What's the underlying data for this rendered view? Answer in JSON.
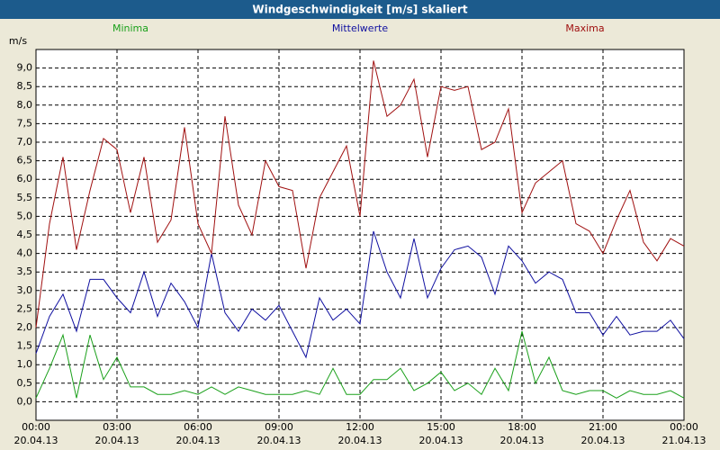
{
  "chart_data": {
    "type": "line",
    "title": "Windgeschwindigkeit [m/s] skaliert",
    "ylabel": "m/s",
    "x": [
      0,
      0.5,
      1,
      1.5,
      2,
      2.5,
      3,
      3.5,
      4,
      4.5,
      5,
      5.5,
      6,
      6.5,
      7,
      7.5,
      8,
      8.5,
      9,
      9.5,
      10,
      10.5,
      11,
      11.5,
      12,
      12.5,
      13,
      13.5,
      14,
      14.5,
      15,
      15.5,
      16,
      16.5,
      17,
      17.5,
      18,
      18.5,
      19,
      19.5,
      20,
      20.5,
      21,
      21.5,
      22,
      22.5,
      23,
      23.5,
      24
    ],
    "series": [
      {
        "name": "Minima",
        "color": "#1aa01a",
        "values": [
          0.1,
          0.9,
          1.8,
          0.1,
          1.8,
          0.6,
          1.2,
          0.4,
          0.4,
          0.2,
          0.2,
          0.3,
          0.2,
          0.4,
          0.2,
          0.4,
          0.3,
          0.2,
          0.2,
          0.2,
          0.3,
          0.2,
          0.9,
          0.2,
          0.2,
          0.6,
          0.6,
          0.9,
          0.3,
          0.5,
          0.8,
          0.3,
          0.5,
          0.2,
          0.9,
          0.3,
          1.9,
          0.5,
          1.2,
          0.3,
          0.2,
          0.3,
          0.3,
          0.1,
          0.3,
          0.2,
          0.2,
          0.3,
          0.1
        ]
      },
      {
        "name": "Mittelwerte",
        "color": "#1010a0",
        "values": [
          1.3,
          2.3,
          2.9,
          1.9,
          3.3,
          3.3,
          2.8,
          2.4,
          3.5,
          2.3,
          3.2,
          2.7,
          2.0,
          4.0,
          2.4,
          1.9,
          2.5,
          2.2,
          2.6,
          1.9,
          1.2,
          2.8,
          2.2,
          2.5,
          2.1,
          4.6,
          3.5,
          2.8,
          4.4,
          2.8,
          3.6,
          4.1,
          4.2,
          3.9,
          2.9,
          4.2,
          3.8,
          3.2,
          3.5,
          3.3,
          2.4,
          2.4,
          1.8,
          2.3,
          1.8,
          1.9,
          1.9,
          2.2,
          1.7
        ]
      },
      {
        "name": "Maxima",
        "color": "#a01010",
        "values": [
          2.0,
          4.8,
          6.6,
          4.1,
          5.7,
          7.1,
          6.8,
          5.1,
          6.6,
          4.3,
          4.9,
          7.4,
          4.8,
          4.0,
          7.7,
          5.3,
          4.5,
          6.5,
          5.8,
          5.7,
          3.6,
          5.5,
          6.2,
          6.9,
          5.0,
          9.2,
          7.7,
          8.0,
          8.7,
          6.6,
          8.5,
          8.4,
          8.5,
          6.8,
          7.0,
          7.9,
          5.1,
          5.9,
          6.2,
          6.5,
          4.8,
          4.6,
          4.0,
          4.9,
          5.7,
          4.3,
          3.8,
          4.4,
          4.2
        ]
      }
    ],
    "xlim": [
      0,
      24
    ],
    "xticks": [
      {
        "value": 0,
        "label": [
          "00:00",
          "20.04.13"
        ]
      },
      {
        "value": 3,
        "label": [
          "03:00",
          "20.04.13"
        ]
      },
      {
        "value": 6,
        "label": [
          "06:00",
          "20.04.13"
        ]
      },
      {
        "value": 9,
        "label": [
          "09:00",
          "20.04.13"
        ]
      },
      {
        "value": 12,
        "label": [
          "12:00",
          "20.04.13"
        ]
      },
      {
        "value": 15,
        "label": [
          "15:00",
          "20.04.13"
        ]
      },
      {
        "value": 18,
        "label": [
          "18:00",
          "20.04.13"
        ]
      },
      {
        "value": 21,
        "label": [
          "21:00",
          "20.04.13"
        ]
      },
      {
        "value": 24,
        "label": [
          "00:00",
          "21.04.13"
        ]
      }
    ],
    "ylim": [
      -0.5,
      9.5
    ],
    "yticks": [
      {
        "value": 0,
        "label": "0,0"
      },
      {
        "value": 0.5,
        "label": "0,5"
      },
      {
        "value": 1,
        "label": "1,0"
      },
      {
        "value": 1.5,
        "label": "1,5"
      },
      {
        "value": 2,
        "label": "2,0"
      },
      {
        "value": 2.5,
        "label": "2,5"
      },
      {
        "value": 3,
        "label": "3,0"
      },
      {
        "value": 3.5,
        "label": "3,5"
      },
      {
        "value": 4,
        "label": "4,0"
      },
      {
        "value": 4.5,
        "label": "4,5"
      },
      {
        "value": 5,
        "label": "5,0"
      },
      {
        "value": 5.5,
        "label": "5,5"
      },
      {
        "value": 6,
        "label": "6,0"
      },
      {
        "value": 6.5,
        "label": "6,5"
      },
      {
        "value": 7,
        "label": "7,0"
      },
      {
        "value": 7.5,
        "label": "7,5"
      },
      {
        "value": 8,
        "label": "8,0"
      },
      {
        "value": 8.5,
        "label": "8,5"
      },
      {
        "value": 9,
        "label": "9,0"
      }
    ],
    "grid": true
  }
}
